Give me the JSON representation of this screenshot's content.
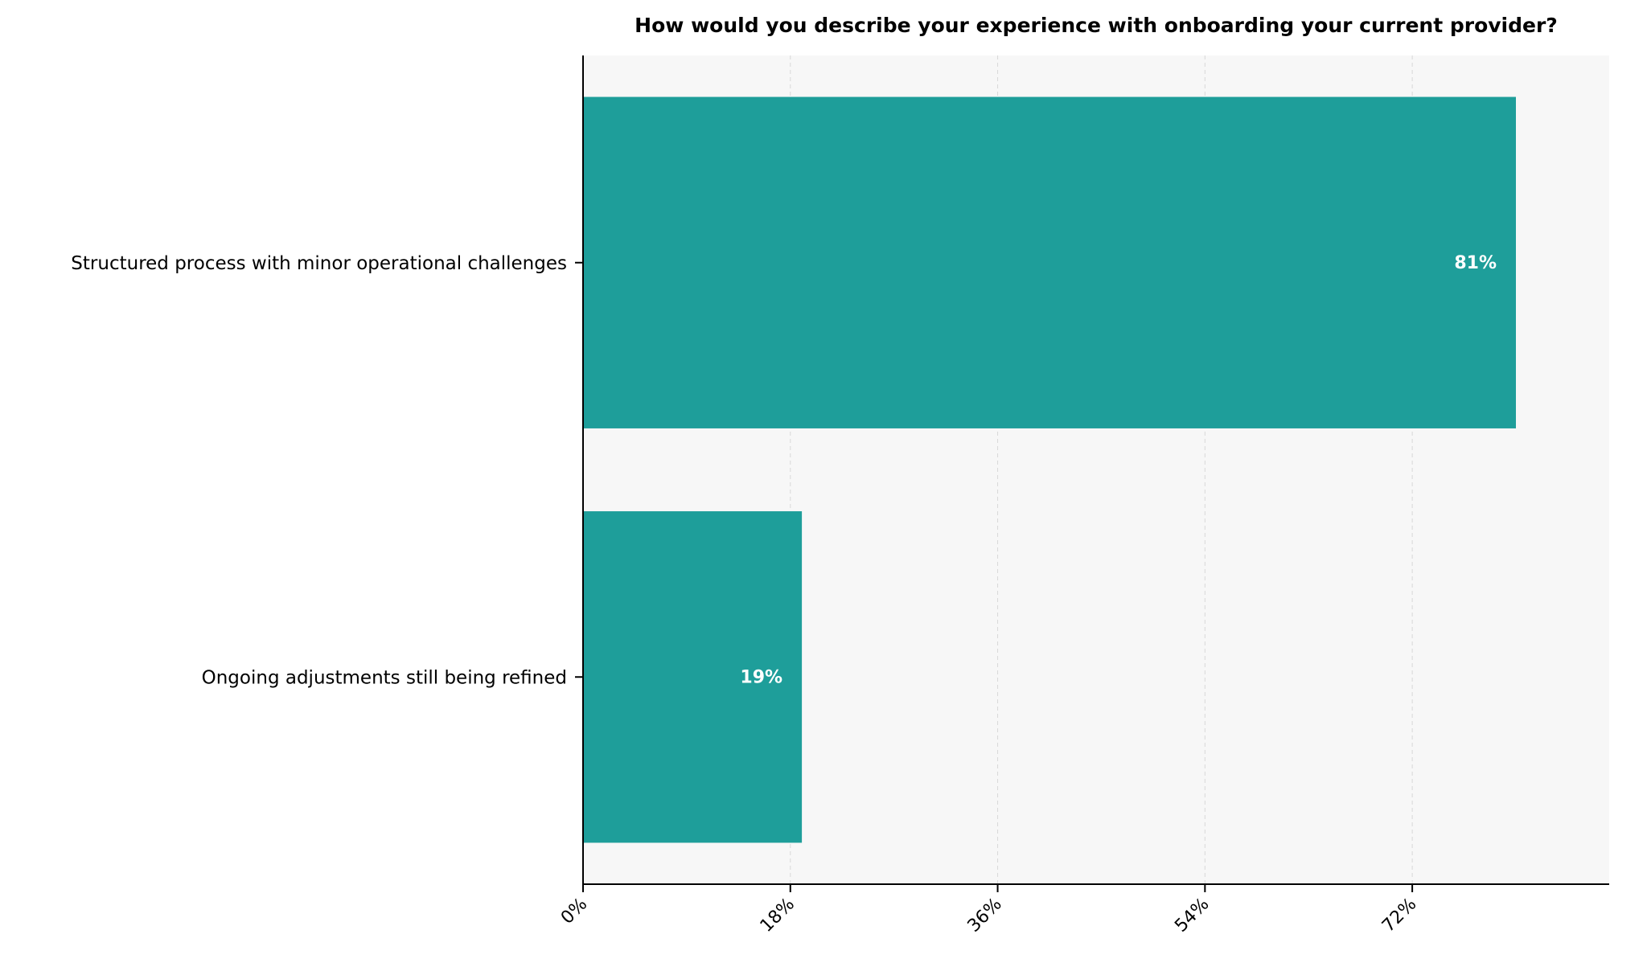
{
  "chart_data": {
    "type": "bar",
    "orientation": "horizontal",
    "title": "How would you describe your experience with onboarding your current provider?",
    "categories": [
      "Structured process with minor operational challenges",
      "Ongoing adjustments still being refined"
    ],
    "values": [
      81,
      19
    ],
    "data_labels": [
      "81%",
      "19%"
    ],
    "xlabel": "",
    "ylabel": "",
    "xlim": [
      0,
      89.1
    ],
    "xticks": [
      0,
      18,
      36,
      54,
      72
    ],
    "xtick_labels": [
      "0%",
      "18%",
      "36%",
      "54%",
      "72%"
    ],
    "grid": "vertical dashed",
    "bar_color": "#1e9e9a",
    "background_color": "#f7f7f7"
  }
}
